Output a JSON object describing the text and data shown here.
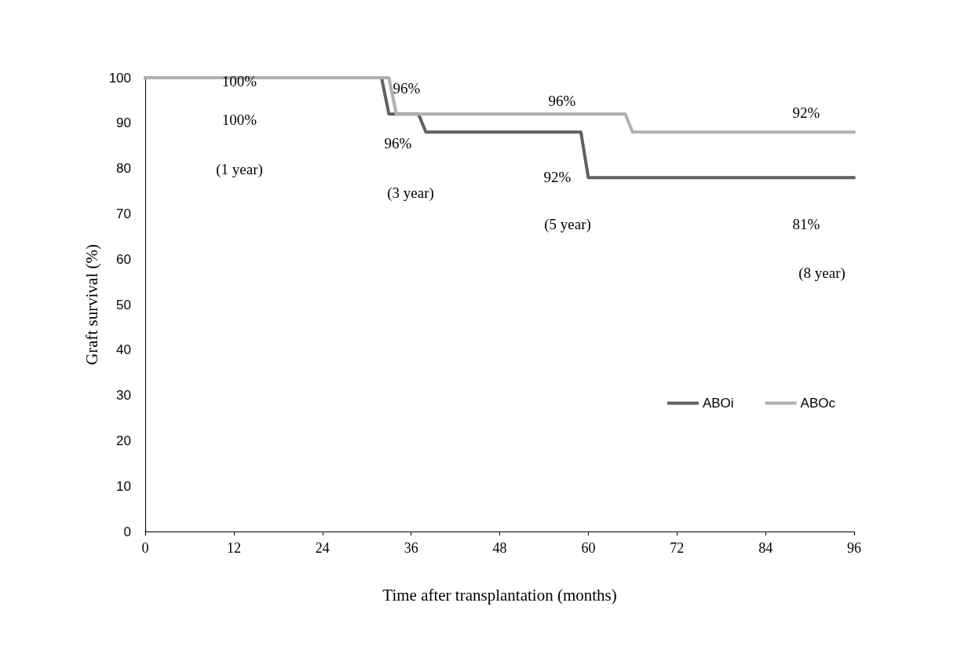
{
  "chart_data": {
    "type": "line",
    "xlabel": "Time after transplantation (months)",
    "ylabel": "Graft survival (%)",
    "xlim": [
      0,
      96
    ],
    "xticks": [
      0,
      12,
      24,
      36,
      48,
      60,
      72,
      84,
      96
    ],
    "ylim": [
      0,
      100
    ],
    "yticks": [
      0,
      10,
      20,
      30,
      40,
      50,
      60,
      70,
      80,
      90,
      100
    ],
    "grid": false,
    "legend": "right",
    "marker": "none",
    "line_style": "solid",
    "series": [
      {
        "name": "ABOi",
        "color": "#606060",
        "x": [
          0,
          32,
          33,
          37,
          38,
          59,
          60,
          96
        ],
        "values": [
          100,
          100,
          92,
          92,
          88,
          88,
          78,
          78
        ]
      },
      {
        "name": "ABOc",
        "color": "#b0b0b0",
        "x": [
          0,
          33,
          34,
          65,
          66,
          96
        ],
        "values": [
          100,
          100,
          92,
          92,
          88,
          88
        ]
      }
    ],
    "annotations": [
      "100%",
      "100%",
      "(1 year)",
      "96%",
      "96%",
      "(3 year)",
      "96%",
      "92%",
      "(5 year)",
      "92%",
      "81%",
      "(8 year)"
    ]
  }
}
